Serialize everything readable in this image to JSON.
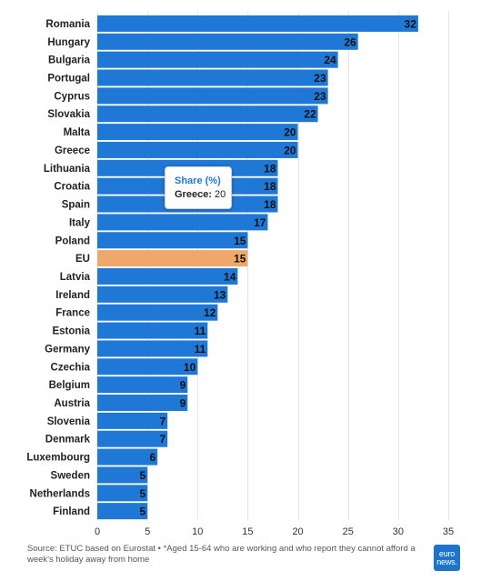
{
  "chart_data": {
    "type": "bar",
    "orientation": "horizontal",
    "categories": [
      "Romania",
      "Hungary",
      "Bulgaria",
      "Portugal",
      "Cyprus",
      "Slovakia",
      "Malta",
      "Greece",
      "Lithuania",
      "Croatia",
      "Spain",
      "Italy",
      "Poland",
      "EU",
      "Latvia",
      "Ireland",
      "France",
      "Estonia",
      "Germany",
      "Czechia",
      "Belgium",
      "Austria",
      "Slovenia",
      "Denmark",
      "Luxembourg",
      "Sweden",
      "Netherlands",
      "Finland"
    ],
    "values": [
      32,
      26,
      24,
      23,
      23,
      22,
      20,
      20,
      18,
      18,
      18,
      17,
      15,
      15,
      14,
      13,
      12,
      11,
      11,
      10,
      9,
      9,
      7,
      7,
      6,
      5,
      5,
      5
    ],
    "highlight_category": "EU",
    "bar_color": "#1f78d6",
    "highlight_color": "#f0a76a",
    "xlim": [
      0,
      35
    ],
    "xticks": [
      0,
      5,
      10,
      15,
      20,
      25,
      30,
      35
    ],
    "grid": true,
    "title": "",
    "xlabel": "",
    "ylabel": ""
  },
  "tooltip": {
    "title": "Share (%)",
    "category": "Greece:",
    "value": "20"
  },
  "footer": {
    "source": "Source: ETUC based on Eurostat • *Aged 15-64 who are working and who report they cannot afford a week's holiday away from home"
  },
  "logo": {
    "line1": "euro",
    "line2": "news."
  }
}
